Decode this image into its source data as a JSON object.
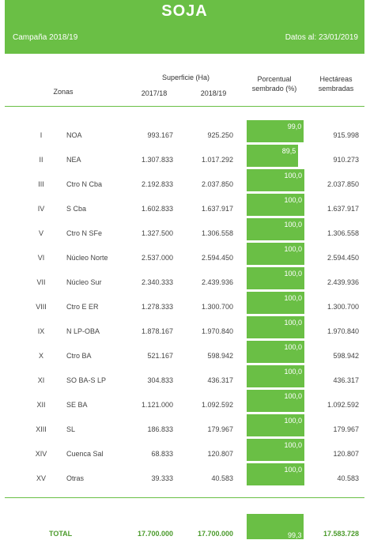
{
  "header": {
    "title": "SOJA",
    "campaign": "Campaña 2018/19",
    "date": "Datos al: 23/01/2019"
  },
  "columns": {
    "zonas": "Zonas",
    "superficie": "Superficie (Ha)",
    "y1": "2017/18",
    "y2": "2018/19",
    "pct_line1": "Porcentual",
    "pct_line2": "sembrado (%)",
    "hect_line1": "Hectáreas",
    "hect_line2": "sembradas"
  },
  "rows": [
    {
      "num": "I",
      "zone": "NOA",
      "a": "993.167",
      "b": "925.250",
      "pct": "99,0",
      "pct_value": 99.0,
      "hect": "915.998"
    },
    {
      "num": "II",
      "zone": "NEA",
      "a": "1.307.833",
      "b": "1.017.292",
      "pct": "89,5",
      "pct_value": 89.5,
      "hect": "910.273"
    },
    {
      "num": "III",
      "zone": "Ctro N Cba",
      "a": "2.192.833",
      "b": "2.037.850",
      "pct": "100,0",
      "pct_value": 100.0,
      "hect": "2.037.850"
    },
    {
      "num": "IV",
      "zone": "S Cba",
      "a": "1.602.833",
      "b": "1.637.917",
      "pct": "100,0",
      "pct_value": 100.0,
      "hect": "1.637.917"
    },
    {
      "num": "V",
      "zone": "Ctro N SFe",
      "a": "1.327.500",
      "b": "1.306.558",
      "pct": "100,0",
      "pct_value": 100.0,
      "hect": "1.306.558"
    },
    {
      "num": "VI",
      "zone": "Núcleo Norte",
      "a": "2.537.000",
      "b": "2.594.450",
      "pct": "100,0",
      "pct_value": 100.0,
      "hect": "2.594.450"
    },
    {
      "num": "VII",
      "zone": "Núcleo Sur",
      "a": "2.340.333",
      "b": "2.439.936",
      "pct": "100,0",
      "pct_value": 100.0,
      "hect": "2.439.936"
    },
    {
      "num": "VIII",
      "zone": "Ctro E ER",
      "a": "1.278.333",
      "b": "1.300.700",
      "pct": "100,0",
      "pct_value": 100.0,
      "hect": "1.300.700"
    },
    {
      "num": "IX",
      "zone": "N LP-OBA",
      "a": "1.878.167",
      "b": "1.970.840",
      "pct": "100,0",
      "pct_value": 100.0,
      "hect": "1.970.840"
    },
    {
      "num": "X",
      "zone": "Ctro BA",
      "a": "521.167",
      "b": "598.942",
      "pct": "100,0",
      "pct_value": 100.0,
      "hect": "598.942"
    },
    {
      "num": "XI",
      "zone": "SO BA-S LP",
      "a": "304.833",
      "b": "436.317",
      "pct": "100,0",
      "pct_value": 100.0,
      "hect": "436.317"
    },
    {
      "num": "XII",
      "zone": "SE BA",
      "a": "1.121.000",
      "b": "1.092.592",
      "pct": "100,0",
      "pct_value": 100.0,
      "hect": "1.092.592"
    },
    {
      "num": "XIII",
      "zone": "SL",
      "a": "186.833",
      "b": "179.967",
      "pct": "100,0",
      "pct_value": 100.0,
      "hect": "179.967"
    },
    {
      "num": "XIV",
      "zone": "Cuenca Sal",
      "a": "68.833",
      "b": "120.807",
      "pct": "100,0",
      "pct_value": 100.0,
      "hect": "120.807"
    },
    {
      "num": "XV",
      "zone": "Otras",
      "a": "39.333",
      "b": "40.583",
      "pct": "100,0",
      "pct_value": 100.0,
      "hect": "40.583"
    }
  ],
  "total": {
    "label": "TOTAL",
    "a": "17.700.000",
    "b": "17.700.000",
    "pct": "99,3",
    "pct_value": 99.3,
    "hect": "17.583.728"
  },
  "colors": {
    "accent": "#6abf45",
    "total_text": "#4a9a2a"
  }
}
